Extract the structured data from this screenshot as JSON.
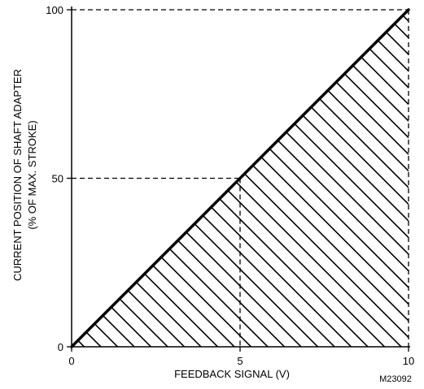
{
  "chart_data": {
    "type": "line",
    "x": [
      0,
      10
    ],
    "y": [
      0,
      100
    ],
    "xlim": [
      0,
      10
    ],
    "ylim": [
      0,
      100
    ],
    "xticks": [
      "0",
      "5",
      "10"
    ],
    "yticks": [
      "0",
      "50",
      "100"
    ],
    "xlabel": "FEEDBACK SIGNAL (V)",
    "ylabel_line1": "CURRENT POSITION OF SHAFT ADAPTER",
    "ylabel_line2": "(% OF MAX. STROKE)",
    "figure_id": "M23092",
    "reference_points": [
      {
        "x": 5,
        "y": 50
      },
      {
        "x": 10,
        "y": 100
      }
    ],
    "shaded_region": "below-line",
    "grid": false,
    "colors": {
      "line": "#000000",
      "hatch": "#000000",
      "background": "#ffffff"
    }
  }
}
